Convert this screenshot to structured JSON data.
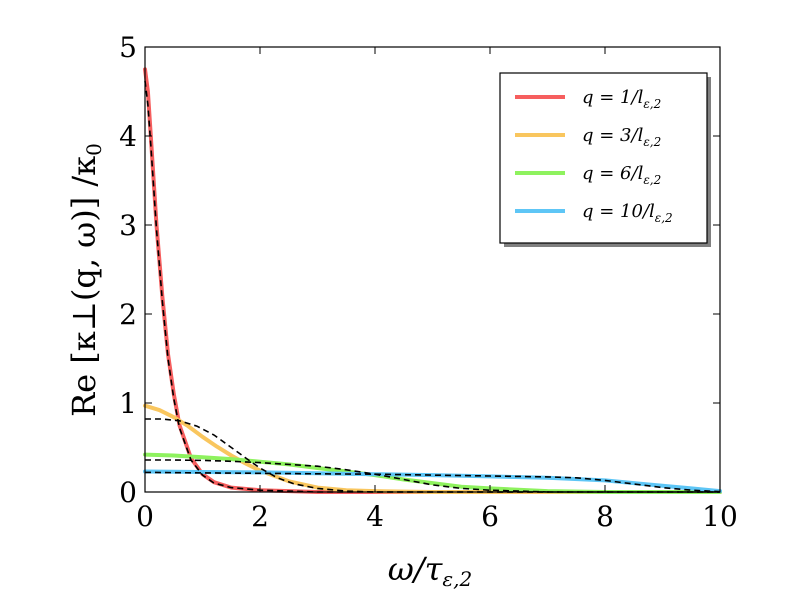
{
  "chart_data": {
    "type": "line",
    "xlabel": "ω/τ",
    "xlabel_sub": "ε,2",
    "ylabel": "Re [κ⊥(q, ω)] /κ",
    "ylabel_sub": "0",
    "xlim": [
      0,
      10
    ],
    "ylim": [
      0,
      5
    ],
    "xticks": [
      "0",
      "2",
      "4",
      "6",
      "8",
      "10"
    ],
    "yticks": [
      "0",
      "1",
      "2",
      "3",
      "4",
      "5"
    ],
    "grid": false,
    "legend_position": "top-right",
    "series": [
      {
        "name": "q = 1/l",
        "name_sub": "ε,2",
        "color": "#f65e5e",
        "style": "solid",
        "x": [
          0,
          0.05,
          0.1,
          0.2,
          0.3,
          0.4,
          0.5,
          0.6,
          0.8,
          1.0,
          1.2,
          1.5,
          2.0,
          2.5,
          3.0,
          4.0,
          10.0
        ],
        "y": [
          4.75,
          4.5,
          4.0,
          3.0,
          2.2,
          1.55,
          1.1,
          0.75,
          0.38,
          0.2,
          0.11,
          0.05,
          0.02,
          0.01,
          0.0,
          0.0,
          0.0
        ]
      },
      {
        "name": "q = 3/l",
        "name_sub": "ε,2",
        "color": "#f9c65e",
        "style": "solid",
        "x": [
          0,
          0.25,
          0.5,
          0.75,
          1.0,
          1.25,
          1.5,
          1.75,
          2.0,
          2.5,
          3.0,
          3.5,
          4.0,
          5.0,
          10.0
        ],
        "y": [
          0.97,
          0.92,
          0.84,
          0.74,
          0.62,
          0.51,
          0.41,
          0.32,
          0.24,
          0.12,
          0.05,
          0.02,
          0.01,
          0.0,
          0.0
        ]
      },
      {
        "name": "q = 6/l",
        "name_sub": "ε,2",
        "color": "#8ef25e",
        "style": "solid",
        "x": [
          0,
          0.5,
          1.0,
          1.5,
          2.0,
          2.5,
          3.0,
          3.5,
          4.0,
          4.5,
          5.0,
          5.5,
          6.0,
          7.0,
          8.0,
          10.0
        ],
        "y": [
          0.42,
          0.41,
          0.39,
          0.37,
          0.34,
          0.31,
          0.27,
          0.23,
          0.19,
          0.14,
          0.1,
          0.06,
          0.04,
          0.01,
          0.0,
          0.0
        ]
      },
      {
        "name": "q = 10/l",
        "name_sub": "ε,2",
        "color": "#5ec6f6",
        "style": "solid",
        "x": [
          0,
          1.0,
          2.0,
          3.0,
          4.0,
          5.0,
          6.0,
          7.0,
          8.0,
          8.5,
          9.0,
          9.5,
          10.0
        ],
        "y": [
          0.23,
          0.225,
          0.22,
          0.21,
          0.2,
          0.19,
          0.175,
          0.16,
          0.13,
          0.1,
          0.07,
          0.04,
          0.01
        ]
      },
      {
        "name": "",
        "color": "#000000",
        "style": "dashed",
        "x": [
          0,
          0.05,
          0.1,
          0.2,
          0.3,
          0.4,
          0.5,
          0.6,
          0.8,
          1.0,
          1.2,
          1.5,
          2.0,
          2.5,
          3.0,
          4.0,
          10.0
        ],
        "y": [
          4.62,
          4.35,
          3.9,
          2.95,
          2.15,
          1.5,
          1.05,
          0.72,
          0.36,
          0.19,
          0.1,
          0.05,
          0.02,
          0.01,
          0.0,
          0.0,
          0.0
        ]
      },
      {
        "name": "",
        "color": "#000000",
        "style": "dashed",
        "x": [
          0,
          0.3,
          0.6,
          0.9,
          1.2,
          1.5,
          1.8,
          2.0,
          2.3,
          2.6,
          3.0,
          3.5,
          4.0,
          5.0,
          10.0
        ],
        "y": [
          0.82,
          0.82,
          0.8,
          0.74,
          0.64,
          0.5,
          0.36,
          0.27,
          0.16,
          0.09,
          0.04,
          0.01,
          0.0,
          0.0,
          0.0
        ]
      },
      {
        "name": "",
        "color": "#000000",
        "style": "dashed",
        "x": [
          0,
          0.5,
          1.0,
          1.5,
          2.0,
          2.5,
          3.0,
          3.5,
          4.0,
          4.5,
          5.0,
          5.5,
          6.0,
          7.0,
          10.0
        ],
        "y": [
          0.36,
          0.36,
          0.355,
          0.345,
          0.33,
          0.31,
          0.29,
          0.25,
          0.2,
          0.14,
          0.08,
          0.04,
          0.02,
          0.0,
          0.0
        ]
      },
      {
        "name": "",
        "color": "#000000",
        "style": "dashed",
        "x": [
          0,
          1.0,
          2.0,
          3.0,
          4.0,
          5.0,
          6.0,
          7.0,
          7.5,
          8.0,
          8.5,
          9.0,
          9.5,
          10.0
        ],
        "y": [
          0.22,
          0.215,
          0.21,
          0.205,
          0.2,
          0.19,
          0.18,
          0.17,
          0.16,
          0.13,
          0.09,
          0.05,
          0.02,
          0.005
        ]
      }
    ]
  }
}
